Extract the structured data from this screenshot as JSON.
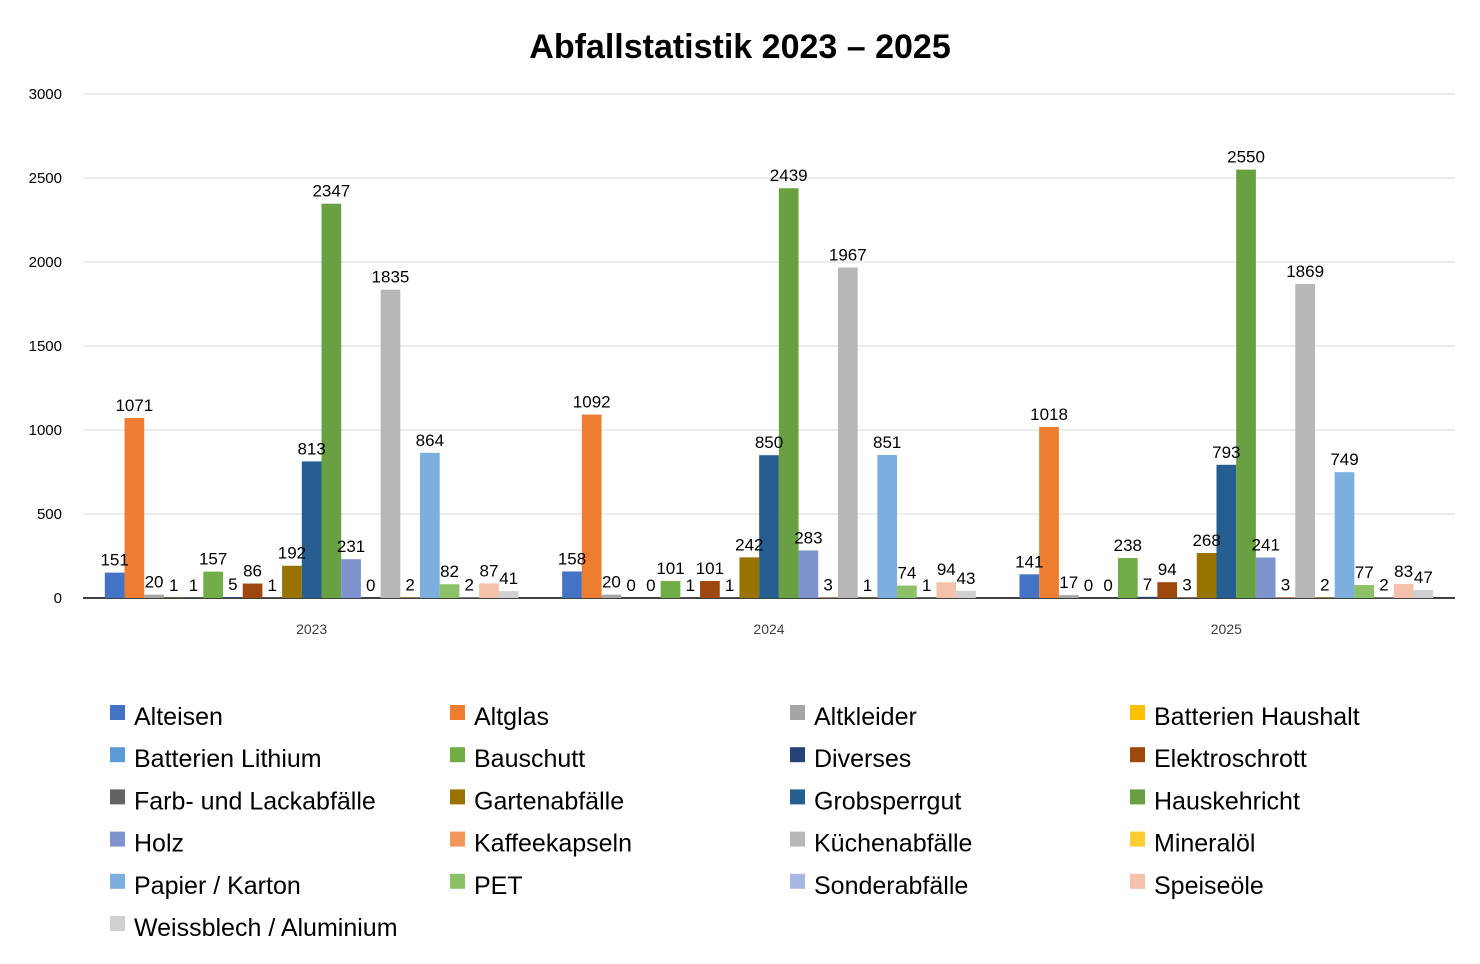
{
  "chart_data": {
    "type": "bar",
    "title": "Abfallstatistik 2023 – 2025",
    "categories": [
      "2023",
      "2024",
      "2025"
    ],
    "ylim": [
      0,
      3000
    ],
    "yticks": [
      0,
      500,
      1000,
      1500,
      2000,
      2500,
      3000
    ],
    "grid": true,
    "legend_position": "bottom",
    "series": [
      {
        "name": "Alteisen",
        "color": "#4472C4",
        "values": [
          151,
          158,
          141
        ]
      },
      {
        "name": "Altglas",
        "color": "#ED7D31",
        "values": [
          1071,
          1092,
          1018
        ]
      },
      {
        "name": "Altkleider",
        "color": "#A5A5A5",
        "values": [
          20,
          20,
          17
        ]
      },
      {
        "name": "Batterien Haushalt",
        "color": "#FFC000",
        "values": [
          1,
          0,
          0
        ]
      },
      {
        "name": "Batterien Lithium",
        "color": "#5B9BD5",
        "values": [
          1,
          0,
          0
        ]
      },
      {
        "name": "Bauschutt",
        "color": "#70AD47",
        "values": [
          157,
          101,
          238
        ]
      },
      {
        "name": "Diverses",
        "color": "#264478",
        "values": [
          5,
          1,
          7
        ]
      },
      {
        "name": "Elektroschrott",
        "color": "#9E480E",
        "values": [
          86,
          101,
          94
        ]
      },
      {
        "name": "Farb- und Lackabfälle",
        "color": "#636363",
        "values": [
          1,
          1,
          3
        ]
      },
      {
        "name": "Gartenabfälle",
        "color": "#997300",
        "values": [
          192,
          242,
          268
        ]
      },
      {
        "name": "Grobsperrgut",
        "color": "#255E91",
        "values": [
          813,
          850,
          793
        ]
      },
      {
        "name": "Hauskehricht",
        "color": "#68A042",
        "values": [
          2347,
          2439,
          2550
        ]
      },
      {
        "name": "Holz",
        "color": "#7F93CF",
        "values": [
          231,
          283,
          241
        ]
      },
      {
        "name": "Kaffeekapseln",
        "color": "#F1975A",
        "values": [
          0,
          3,
          3
        ]
      },
      {
        "name": "Küchenabfälle",
        "color": "#B7B7B7",
        "values": [
          1835,
          1967,
          1869
        ]
      },
      {
        "name": "Mineralöl",
        "color": "#FFCD33",
        "values": [
          2,
          1,
          2
        ]
      },
      {
        "name": "Papier / Karton",
        "color": "#7CAFDD",
        "values": [
          864,
          851,
          749
        ]
      },
      {
        "name": "PET",
        "color": "#8CC168",
        "values": [
          82,
          74,
          77
        ]
      },
      {
        "name": "Sonderabfälle",
        "color": "#A9B8E2",
        "values": [
          2,
          1,
          2
        ]
      },
      {
        "name": "Speiseöle",
        "color": "#F4C1AA",
        "values": [
          87,
          94,
          83
        ]
      },
      {
        "name": "Weissblech / Aluminium",
        "color": "#D0D0D0",
        "values": [
          41,
          43,
          47
        ]
      }
    ]
  }
}
